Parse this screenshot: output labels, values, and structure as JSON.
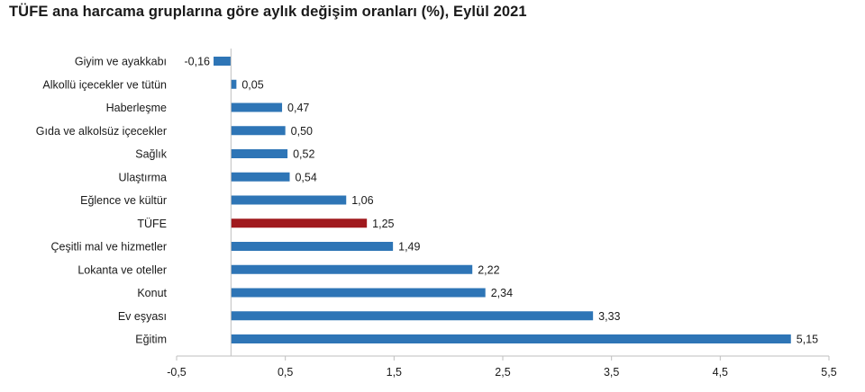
{
  "chart_data": {
    "type": "bar",
    "orientation": "horizontal",
    "title": "TÜFE ana harcama gruplarına göre aylık değişim oranları (%), Eylül 2021",
    "categories": [
      "Giyim ve ayakkabı",
      "Alkollü içecekler ve tütün",
      "Haberleşme",
      "Gıda ve alkolsüz içecekler",
      "Sağlık",
      "Ulaştırma",
      "Eğlence ve kültür",
      "TÜFE",
      "Çeşitli mal ve hizmetler",
      "Lokanta ve oteller",
      "Konut",
      "Ev eşyası",
      "Eğitim"
    ],
    "values": [
      -0.16,
      0.05,
      0.47,
      0.5,
      0.52,
      0.54,
      1.06,
      1.25,
      1.49,
      2.22,
      2.34,
      3.33,
      5.15
    ],
    "value_labels": [
      "-0,16",
      "0,05",
      "0,47",
      "0,50",
      "0,52",
      "0,54",
      "1,06",
      "1,25",
      "1,49",
      "2,22",
      "2,34",
      "3,33",
      "5,15"
    ],
    "highlight_category": "TÜFE",
    "xlim": [
      -0.5,
      5.5
    ],
    "xticks": [
      -0.5,
      0.5,
      1.5,
      2.5,
      3.5,
      4.5,
      5.5
    ],
    "xtick_labels": [
      "-0,5",
      "0,5",
      "1,5",
      "2,5",
      "3,5",
      "4,5",
      "5,5"
    ],
    "xlabel": "",
    "ylabel": "",
    "grid": false,
    "legend": "none",
    "colors": {
      "bar": "#2e75b6",
      "highlight": "#a0191d",
      "axis": "#bfbfbf"
    }
  }
}
